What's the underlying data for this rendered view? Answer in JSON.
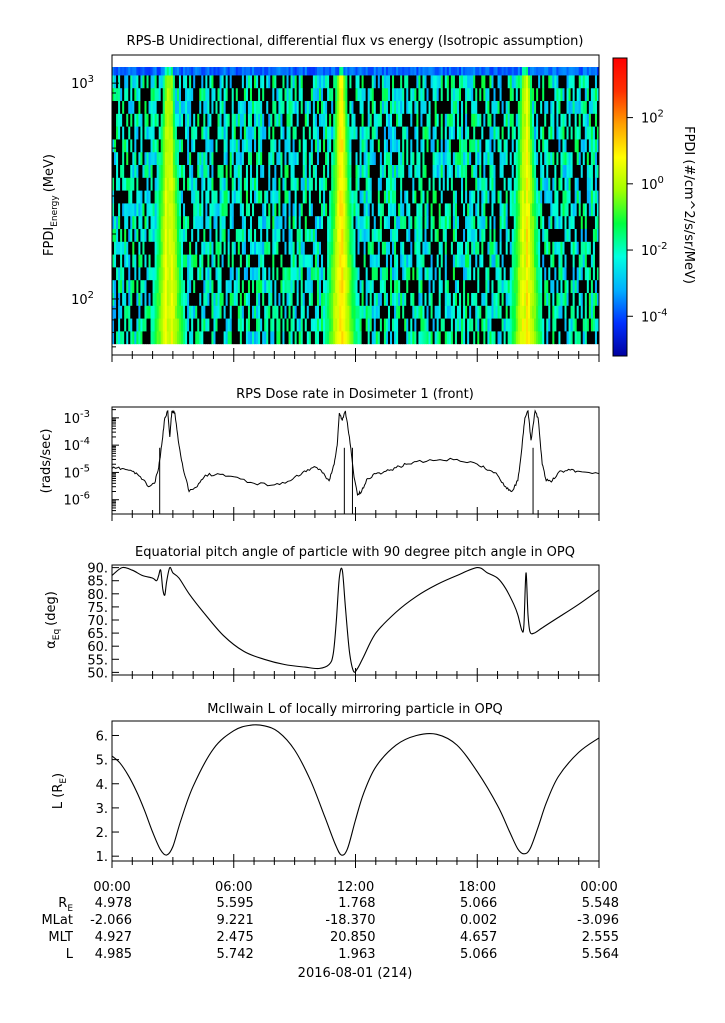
{
  "chart_data": [
    {
      "type": "heatmap",
      "title": "RPS-B  Unidirectional, differential flux vs energy (Isotropic assumption)",
      "ylabel_main": "FPDI",
      "ylabel_sub": "Energy",
      "ylabel_unit": "(MeV)",
      "y_scale": "log",
      "ylim": [
        55,
        1350
      ],
      "ytick_labels": [
        {
          "value": 100,
          "base": "10",
          "exp": "2"
        },
        {
          "value": 1000,
          "base": "10",
          "exp": "3"
        }
      ],
      "colorbar": {
        "label": "FPDI (#/cm^2/s/sr/MeV)",
        "scale": "log",
        "range_exp": [
          -5.2,
          3.8
        ],
        "tick_labels": [
          {
            "exp_value": -4,
            "base": "10",
            "exp": "-4"
          },
          {
            "exp_value": -2,
            "base": "10",
            "exp": "-2"
          },
          {
            "exp_value": 0,
            "base": "10",
            "exp": "0"
          },
          {
            "exp_value": 2,
            "base": "10",
            "exp": "2"
          }
        ],
        "colors": [
          "#0000a0",
          "#0030ff",
          "#00b0ff",
          "#00ffe0",
          "#00ff40",
          "#a0ff00",
          "#ffff00",
          "#ffa000",
          "#ff3000",
          "#ff0000"
        ]
      },
      "belt_peaks_hours": [
        2.8,
        11.3,
        20.4
      ],
      "belt_peak_log_flux": 1.3,
      "background_log_flux": -2.2
    },
    {
      "type": "line",
      "title": "RPS  Dose rate in Dosimeter 1 (front)",
      "ylabel": "(rads/sec)",
      "y_scale": "log",
      "ylim": [
        3e-07,
        0.0025
      ],
      "ytick_labels": [
        {
          "value": 0.001,
          "base": "10",
          "exp": "-3"
        },
        {
          "value": 0.0001,
          "base": "10",
          "exp": "-4"
        },
        {
          "value": 1e-05,
          "base": "10",
          "exp": "-5"
        },
        {
          "value": 1e-06,
          "base": "10",
          "exp": "-6"
        }
      ],
      "x_hours": [
        0,
        0.5,
        1.0,
        1.4,
        1.8,
        2.1,
        2.3,
        2.45,
        2.6,
        2.75,
        2.85,
        2.95,
        3.1,
        3.3,
        3.55,
        3.8,
        4.2,
        4.6,
        5.2,
        6.0,
        7.0,
        8.0,
        8.8,
        9.4,
        9.9,
        10.3,
        10.7,
        10.95,
        11.1,
        11.2,
        11.35,
        11.5,
        11.7,
        11.9,
        12.1,
        12.3,
        12.6,
        13.0,
        13.5,
        14.0,
        14.5,
        15.0,
        16.0,
        17.0,
        18.0,
        18.6,
        19.0,
        19.4,
        19.7,
        20.0,
        20.2,
        20.35,
        20.5,
        20.65,
        20.85,
        21.0,
        21.2,
        21.4,
        21.7,
        22.0,
        22.5,
        23.0,
        24.0
      ],
      "y_values": [
        1.4e-05,
        1.4e-05,
        1.1e-05,
        7e-06,
        3e-06,
        4e-06,
        1.5e-05,
        0.0001,
        0.001,
        0.0018,
        0.0002,
        0.0018,
        0.0015,
        0.0001,
        1e-05,
        2e-06,
        3e-06,
        8e-06,
        9e-06,
        7e-06,
        4e-06,
        3.5e-06,
        5e-06,
        1e-05,
        1.5e-05,
        1.2e-05,
        5e-06,
        2e-05,
        0.0001,
        0.0015,
        0.0008,
        0.0018,
        0.0002,
        1e-05,
        1.5e-06,
        2e-06,
        6e-06,
        9e-06,
        1.1e-05,
        1.5e-05,
        2e-05,
        2.5e-05,
        2.8e-05,
        3e-05,
        2e-05,
        1.2e-05,
        8e-06,
        3e-06,
        2e-06,
        5e-06,
        8e-05,
        0.001,
        0.0018,
        0.00015,
        0.0018,
        0.001,
        2e-05,
        5e-06,
        5e-06,
        1e-05,
        1.3e-05,
        1.1e-05,
        9e-06
      ],
      "drops_hours": [
        2.35,
        11.45,
        11.85,
        20.75
      ]
    },
    {
      "type": "line",
      "title": "Equatorial pitch angle of particle with 90 degree pitch angle in OPQ",
      "ylabel_main": "α",
      "ylabel_sub": "Eq",
      "ylabel_unit": "(deg)",
      "ylim": [
        49,
        91
      ],
      "ytick_labels": [
        "90.",
        "85.",
        "80.",
        "75.",
        "70.",
        "65.",
        "60.",
        "55.",
        "50."
      ],
      "ytick_values": [
        90,
        85,
        80,
        75,
        70,
        65,
        60,
        55,
        50
      ],
      "x_hours": [
        0,
        0.5,
        1.0,
        1.5,
        2.0,
        2.2,
        2.3,
        2.4,
        2.5,
        2.6,
        2.7,
        2.85,
        3.0,
        3.3,
        3.8,
        4.5,
        5.5,
        6.5,
        7.5,
        8.5,
        9.5,
        10.2,
        10.7,
        10.9,
        11.05,
        11.2,
        11.35,
        11.5,
        11.7,
        11.9,
        12.1,
        12.4,
        13.0,
        14.0,
        15.0,
        16.0,
        17.0,
        18.0,
        18.5,
        19.0,
        19.4,
        19.8,
        20.0,
        20.2,
        20.3,
        20.4,
        20.5,
        20.6,
        20.8,
        21.2,
        22.0,
        23.0,
        24.0
      ],
      "y_values": [
        87,
        90,
        89,
        87,
        86,
        85,
        87,
        89,
        82,
        79.5,
        85,
        90,
        88,
        86,
        80,
        73,
        64,
        58,
        55,
        53,
        52,
        51.5,
        53,
        57,
        69,
        86,
        89,
        75,
        58,
        50.5,
        51.5,
        56,
        65,
        73,
        79,
        83.5,
        87,
        90,
        88,
        86,
        82,
        76,
        72,
        66,
        68,
        88,
        72,
        65.5,
        65,
        67,
        71,
        76,
        81.5
      ]
    },
    {
      "type": "line",
      "title": "McIlwain L of locally mirroring particle in OPQ",
      "ylabel_main": "L (R",
      "ylabel_sub": "E",
      "ylabel_end": ")",
      "ylim": [
        0.8,
        6.6
      ],
      "ytick_labels": [
        "6.",
        "5.",
        "4.",
        "3.",
        "2.",
        "1."
      ],
      "ytick_values": [
        6,
        5,
        4,
        3,
        2,
        1
      ],
      "x_hours": [
        0,
        0.4,
        0.8,
        1.2,
        1.6,
        2.0,
        2.4,
        2.7,
        3.0,
        3.4,
        4.0,
        5.0,
        6.0,
        6.8,
        7.5,
        8.2,
        9.0,
        9.8,
        10.5,
        11.0,
        11.3,
        11.6,
        12.0,
        12.4,
        13.0,
        14.0,
        15.0,
        16.0,
        17.0,
        18.0,
        19.0,
        19.6,
        20.0,
        20.3,
        20.6,
        21.0,
        21.4,
        22.0,
        23.0,
        24.0
      ],
      "y_values": [
        5.15,
        4.85,
        4.35,
        3.7,
        2.9,
        2.0,
        1.25,
        1.05,
        1.4,
        2.5,
        3.9,
        5.45,
        6.2,
        6.42,
        6.4,
        6.15,
        5.4,
        4.1,
        2.6,
        1.5,
        1.05,
        1.3,
        2.5,
        3.6,
        4.7,
        5.6,
        6.0,
        6.05,
        5.6,
        4.5,
        3.1,
        2.0,
        1.3,
        1.1,
        1.3,
        2.2,
        3.2,
        4.3,
        5.3,
        5.9
      ]
    }
  ],
  "x_axis": {
    "tick_labels": [
      "00:00",
      "06:00",
      "12:00",
      "18:00",
      "00:00"
    ],
    "tick_hours": [
      0,
      6,
      12,
      18,
      24
    ],
    "range_hours": [
      0,
      24
    ]
  },
  "ephemeris": {
    "rows": [
      {
        "label_main": "R",
        "label_sub": "E",
        "values": [
          "4.978",
          "5.595",
          "1.768",
          "5.066",
          "5.548"
        ]
      },
      {
        "label_main": "MLat",
        "label_sub": "",
        "values": [
          "-2.066",
          "9.221",
          "-18.370",
          "0.002",
          "-3.096"
        ]
      },
      {
        "label_main": "MLT",
        "label_sub": "",
        "values": [
          "4.927",
          "2.475",
          "20.850",
          "4.657",
          "2.555"
        ]
      },
      {
        "label_main": "L",
        "label_sub": "",
        "values": [
          "4.985",
          "5.742",
          "1.963",
          "5.066",
          "5.564"
        ]
      }
    ],
    "date_label": "2016-08-01 (214)"
  }
}
